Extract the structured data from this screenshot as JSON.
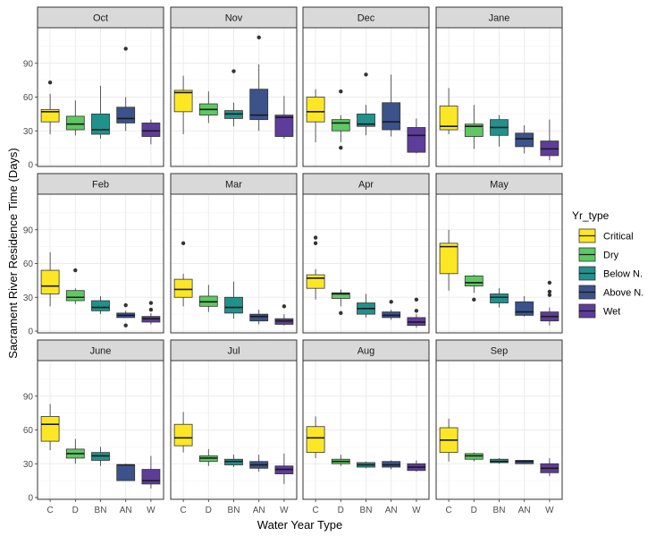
{
  "chart_data": {
    "type": "boxplot",
    "xlabel": "Water Year Type",
    "ylabel": "Sacrament River Residence Time (Days)",
    "ylim": [
      0,
      120
    ],
    "yticks": [
      0,
      30,
      60,
      90
    ],
    "categories": [
      "C",
      "D",
      "BN",
      "AN",
      "W"
    ],
    "legend": {
      "title": "Yr_type",
      "position": "right",
      "entries": [
        {
          "label": "Critical",
          "color": "#FDE725"
        },
        {
          "label": "Dry",
          "color": "#5EC962"
        },
        {
          "label": "Below N.",
          "color": "#21918C"
        },
        {
          "label": "Above N.",
          "color": "#3B528B"
        },
        {
          "label": "Wet",
          "color": "#5E3C99"
        }
      ]
    },
    "panels": [
      {
        "month": "Oct",
        "boxes": [
          {
            "min": 27,
            "q1": 38,
            "median": 47,
            "q3": 49,
            "max": 63,
            "outliers": [
              73
            ]
          },
          {
            "min": 26,
            "q1": 31,
            "median": 36,
            "q3": 43,
            "max": 57,
            "outliers": []
          },
          {
            "min": 23,
            "q1": 27,
            "median": 31,
            "q3": 45,
            "max": 70,
            "outliers": []
          },
          {
            "min": 30,
            "q1": 37,
            "median": 41,
            "q3": 51,
            "max": 60,
            "outliers": [
              103
            ]
          },
          {
            "min": 18,
            "q1": 25,
            "median": 30,
            "q3": 37,
            "max": 40,
            "outliers": []
          }
        ]
      },
      {
        "month": "Nov",
        "boxes": [
          {
            "min": 27,
            "q1": 47,
            "median": 64,
            "q3": 66,
            "max": 79,
            "outliers": []
          },
          {
            "min": 37,
            "q1": 44,
            "median": 49,
            "q3": 54,
            "max": 65,
            "outliers": []
          },
          {
            "min": 34,
            "q1": 41,
            "median": 45,
            "q3": 48,
            "max": 55,
            "outliers": [
              83
            ]
          },
          {
            "min": 30,
            "q1": 40,
            "median": 44,
            "q3": 67,
            "max": 89,
            "outliers": [
              113
            ]
          },
          {
            "min": 23,
            "q1": 25,
            "median": 42,
            "q3": 44,
            "max": 61,
            "outliers": []
          }
        ]
      },
      {
        "month": "Dec",
        "boxes": [
          {
            "min": 20,
            "q1": 38,
            "median": 47,
            "q3": 60,
            "max": 67,
            "outliers": []
          },
          {
            "min": 20,
            "q1": 30,
            "median": 37,
            "q3": 40,
            "max": 44,
            "outliers": [
              15,
              65
            ]
          },
          {
            "min": 26,
            "q1": 34,
            "median": 36,
            "q3": 45,
            "max": 53,
            "outliers": [
              80
            ]
          },
          {
            "min": 25,
            "q1": 31,
            "median": 38,
            "q3": 55,
            "max": 80,
            "outliers": []
          },
          {
            "min": 10,
            "q1": 11,
            "median": 26,
            "q3": 33,
            "max": 41,
            "outliers": []
          }
        ]
      },
      {
        "month": "Jane",
        "boxes": [
          {
            "min": 27,
            "q1": 31,
            "median": 34,
            "q3": 52,
            "max": 68,
            "outliers": []
          },
          {
            "min": 14,
            "q1": 25,
            "median": 34,
            "q3": 36,
            "max": 53,
            "outliers": []
          },
          {
            "min": 16,
            "q1": 26,
            "median": 33,
            "q3": 40,
            "max": 44,
            "outliers": []
          },
          {
            "min": 10,
            "q1": 16,
            "median": 23,
            "q3": 28,
            "max": 35,
            "outliers": []
          },
          {
            "min": 4,
            "q1": 8,
            "median": 14,
            "q3": 21,
            "max": 40,
            "outliers": []
          }
        ]
      },
      {
        "month": "Feb",
        "boxes": [
          {
            "min": 22,
            "q1": 33,
            "median": 40,
            "q3": 54,
            "max": 70,
            "outliers": []
          },
          {
            "min": 24,
            "q1": 27,
            "median": 30,
            "q3": 36,
            "max": 38,
            "outliers": [
              54
            ]
          },
          {
            "min": 15,
            "q1": 18,
            "median": 21,
            "q3": 27,
            "max": 31,
            "outliers": []
          },
          {
            "min": 12,
            "q1": 12,
            "median": 14,
            "q3": 16,
            "max": 18,
            "outliers": [
              5,
              23
            ]
          },
          {
            "min": 6,
            "q1": 8,
            "median": 11,
            "q3": 13,
            "max": 16,
            "outliers": [
              19,
              25
            ]
          }
        ]
      },
      {
        "month": "Mar",
        "boxes": [
          {
            "min": 22,
            "q1": 30,
            "median": 37,
            "q3": 46,
            "max": 51,
            "outliers": [
              78
            ]
          },
          {
            "min": 17,
            "q1": 22,
            "median": 26,
            "q3": 31,
            "max": 41,
            "outliers": []
          },
          {
            "min": 11,
            "q1": 16,
            "median": 21,
            "q3": 30,
            "max": 44,
            "outliers": []
          },
          {
            "min": 6,
            "q1": 9,
            "median": 13,
            "q3": 15,
            "max": 19,
            "outliers": []
          },
          {
            "min": 5,
            "q1": 6,
            "median": 9,
            "q3": 11,
            "max": 15,
            "outliers": [
              22
            ]
          }
        ]
      },
      {
        "month": "Apr",
        "boxes": [
          {
            "min": 28,
            "q1": 38,
            "median": 47,
            "q3": 50,
            "max": 55,
            "outliers": [
              78,
              83
            ]
          },
          {
            "min": 22,
            "q1": 29,
            "median": 33,
            "q3": 34,
            "max": 37,
            "outliers": [
              16
            ]
          },
          {
            "min": 12,
            "q1": 15,
            "median": 20,
            "q3": 25,
            "max": 33,
            "outliers": []
          },
          {
            "min": 10,
            "q1": 12,
            "median": 14,
            "q3": 17,
            "max": 19,
            "outliers": [
              26
            ]
          },
          {
            "min": 3,
            "q1": 5,
            "median": 8,
            "q3": 12,
            "max": 15,
            "outliers": [
              18,
              28
            ]
          }
        ]
      },
      {
        "month": "May",
        "boxes": [
          {
            "min": 36,
            "q1": 51,
            "median": 75,
            "q3": 78,
            "max": 90,
            "outliers": []
          },
          {
            "min": 34,
            "q1": 40,
            "median": 43,
            "q3": 49,
            "max": 50,
            "outliers": [
              28
            ]
          },
          {
            "min": 21,
            "q1": 25,
            "median": 30,
            "q3": 33,
            "max": 38,
            "outliers": []
          },
          {
            "min": 13,
            "q1": 14,
            "median": 17,
            "q3": 26,
            "max": 31,
            "outliers": []
          },
          {
            "min": 5,
            "q1": 9,
            "median": 13,
            "q3": 17,
            "max": 21,
            "outliers": [
              32,
              35,
              43
            ]
          }
        ]
      },
      {
        "month": "June",
        "boxes": [
          {
            "min": 42,
            "q1": 50,
            "median": 65,
            "q3": 72,
            "max": 83,
            "outliers": []
          },
          {
            "min": 30,
            "q1": 35,
            "median": 39,
            "q3": 43,
            "max": 52,
            "outliers": []
          },
          {
            "min": 28,
            "q1": 33,
            "median": 37,
            "q3": 40,
            "max": 45,
            "outliers": []
          },
          {
            "min": 15,
            "q1": 15,
            "median": 29,
            "q3": 29,
            "max": 30,
            "outliers": []
          },
          {
            "min": 8,
            "q1": 12,
            "median": 15,
            "q3": 25,
            "max": 37,
            "outliers": []
          }
        ]
      },
      {
        "month": "Jul",
        "boxes": [
          {
            "min": 40,
            "q1": 46,
            "median": 53,
            "q3": 65,
            "max": 76,
            "outliers": []
          },
          {
            "min": 28,
            "q1": 32,
            "median": 35,
            "q3": 37,
            "max": 43,
            "outliers": []
          },
          {
            "min": 27,
            "q1": 29,
            "median": 32,
            "q3": 34,
            "max": 38,
            "outliers": []
          },
          {
            "min": 23,
            "q1": 26,
            "median": 29,
            "q3": 32,
            "max": 38,
            "outliers": []
          },
          {
            "min": 12,
            "q1": 21,
            "median": 25,
            "q3": 28,
            "max": 39,
            "outliers": []
          }
        ]
      },
      {
        "month": "Aug",
        "boxes": [
          {
            "min": 35,
            "q1": 40,
            "median": 53,
            "q3": 63,
            "max": 72,
            "outliers": []
          },
          {
            "min": 28,
            "q1": 30,
            "median": 32,
            "q3": 34,
            "max": 38,
            "outliers": []
          },
          {
            "min": 26,
            "q1": 27,
            "median": 29,
            "q3": 31,
            "max": 32,
            "outliers": []
          },
          {
            "min": 25,
            "q1": 27,
            "median": 29,
            "q3": 32,
            "max": 33,
            "outliers": []
          },
          {
            "min": 23,
            "q1": 24,
            "median": 27,
            "q3": 30,
            "max": 33,
            "outliers": []
          }
        ]
      },
      {
        "month": "Sep",
        "boxes": [
          {
            "min": 32,
            "q1": 40,
            "median": 51,
            "q3": 62,
            "max": 70,
            "outliers": []
          },
          {
            "min": 32,
            "q1": 34,
            "median": 37,
            "q3": 39,
            "max": 40,
            "outliers": []
          },
          {
            "min": 30,
            "q1": 31,
            "median": 32,
            "q3": 34,
            "max": 35,
            "outliers": []
          },
          {
            "min": 30,
            "q1": 30,
            "median": 32,
            "q3": 33,
            "max": 33,
            "outliers": []
          },
          {
            "min": 19,
            "q1": 22,
            "median": 26,
            "q3": 30,
            "max": 35,
            "outliers": []
          }
        ]
      }
    ]
  }
}
